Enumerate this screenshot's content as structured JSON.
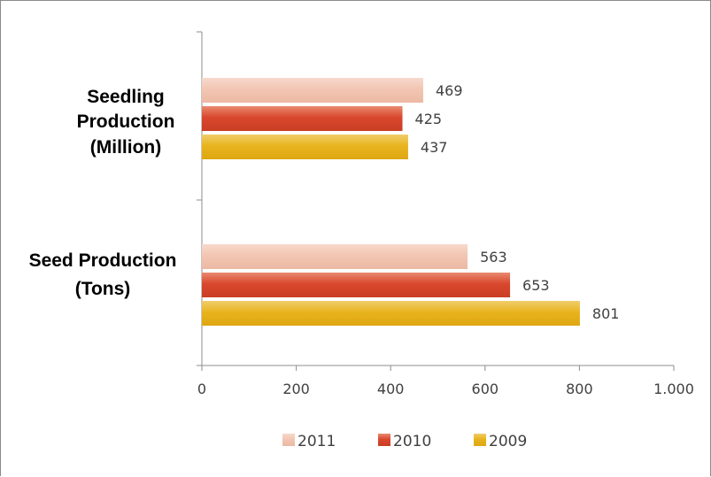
{
  "chart_data": {
    "type": "bar",
    "orientation": "horizontal",
    "categories": [
      {
        "lines": [
          "Seedling",
          "Production",
          "(Million)"
        ]
      },
      {
        "lines": [
          "Seed Production",
          "(Tons)"
        ]
      }
    ],
    "series": [
      {
        "name": "2011",
        "values": [
          469,
          563
        ],
        "color": "#f2c6b3"
      },
      {
        "name": "2010",
        "values": [
          425,
          653
        ],
        "color": "#d9482e"
      },
      {
        "name": "2009",
        "values": [
          437,
          801
        ],
        "color": "#e8b41e"
      }
    ],
    "data_labels": [
      [
        "469",
        "563"
      ],
      [
        "425",
        "653"
      ],
      [
        "437",
        "801"
      ]
    ],
    "x_ticks": [
      {
        "value": 0,
        "label": "0"
      },
      {
        "value": 200,
        "label": "200"
      },
      {
        "value": 400,
        "label": "400"
      },
      {
        "value": 600,
        "label": "600"
      },
      {
        "value": 800,
        "label": "800"
      },
      {
        "value": 1000,
        "label": "1.000"
      }
    ],
    "xlim": [
      0,
      1000
    ],
    "title": "",
    "xlabel": "",
    "ylabel": "",
    "grid": false,
    "legend": {
      "position": "bottom",
      "order": [
        "2011",
        "2010",
        "2009"
      ]
    }
  }
}
